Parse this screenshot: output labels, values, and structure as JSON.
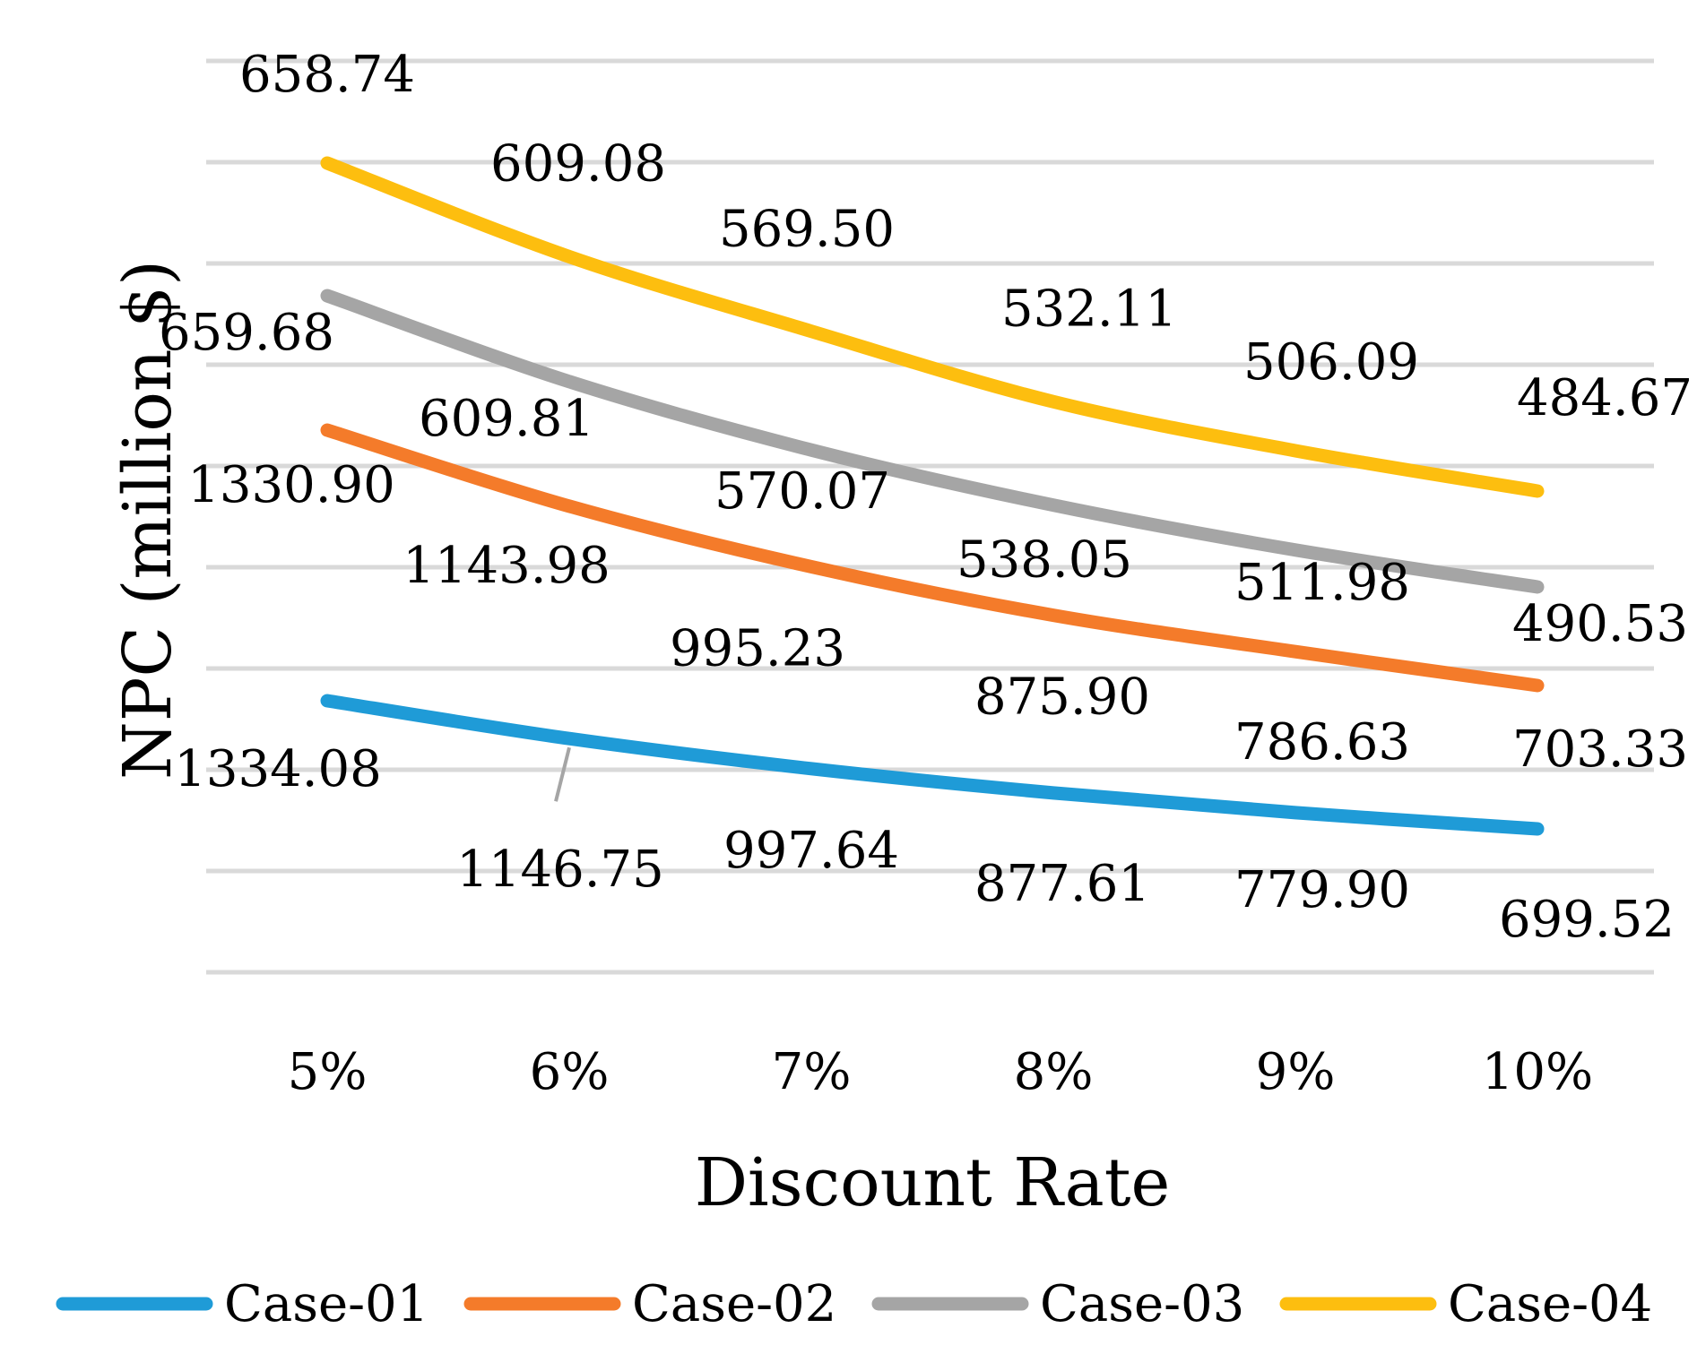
{
  "chart_data": {
    "type": "line",
    "title": "",
    "xlabel": "Discount Rate",
    "ylabel": "NPC (million $)",
    "categories": [
      "5%",
      "6%",
      "7%",
      "8%",
      "9%",
      "10%"
    ],
    "grid": true,
    "legend_position": "bottom",
    "series": [
      {
        "name": "Case-01",
        "color": "#1f9bd7",
        "values": [
          1334.08,
          1146.75,
          997.64,
          877.61,
          779.9,
          699.52
        ],
        "labels": [
          "1334.08",
          "1146.75",
          "997.64",
          "877.61",
          "779.90",
          "699.52"
        ]
      },
      {
        "name": "Case-02",
        "color": "#f47b2a",
        "values": [
          1330.9,
          1143.98,
          995.23,
          875.9,
          786.63,
          703.33
        ],
        "labels": [
          "1330.90",
          "1143.98",
          "995.23",
          "875.90",
          "786.63",
          "703.33"
        ]
      },
      {
        "name": "Case-03",
        "color": "#a5a5a5",
        "values": [
          659.68,
          609.81,
          570.07,
          538.05,
          511.98,
          490.53
        ],
        "labels": [
          "659.68",
          "609.81",
          "570.07",
          "538.05",
          "511.98",
          "490.53"
        ]
      },
      {
        "name": "Case-04",
        "color": "#fdbe0f",
        "values": [
          658.74,
          609.08,
          569.5,
          532.11,
          506.09,
          484.67
        ],
        "labels": [
          "658.74",
          "609.08",
          "569.50",
          "532.11",
          "506.09",
          "484.67"
        ]
      }
    ]
  }
}
